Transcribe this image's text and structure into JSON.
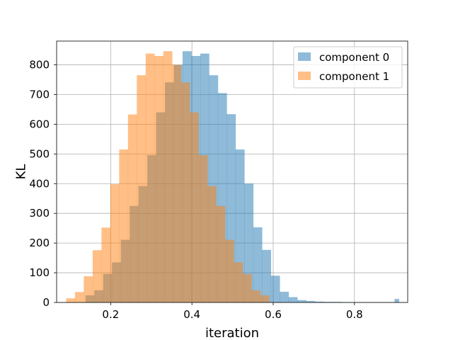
{
  "chart_data": {
    "type": "histogram",
    "xlabel": "iteration",
    "ylabel": "KL",
    "xlim": [
      0.067,
      0.931
    ],
    "ylim": [
      0,
      880
    ],
    "xticks": [
      0.2,
      0.4,
      0.6,
      0.8
    ],
    "xtick_labels": [
      "0.2",
      "0.4",
      "0.6",
      "0.8"
    ],
    "yticks": [
      0,
      100,
      200,
      300,
      400,
      500,
      600,
      700,
      800
    ],
    "ytick_labels": [
      "0",
      "100",
      "200",
      "300",
      "400",
      "500",
      "600",
      "700",
      "800"
    ],
    "grid": true,
    "legend_position": "top-right",
    "series": [
      {
        "name": "component 0",
        "color": "#1f77b4",
        "opacity": 0.5,
        "bin_edges": [
          0.138,
          0.1597,
          0.1815,
          0.2032,
          0.2249,
          0.2467,
          0.2684,
          0.2901,
          0.3118,
          0.3336,
          0.3553,
          0.377,
          0.3988,
          0.4205,
          0.4422,
          0.464,
          0.4857,
          0.5074,
          0.5292,
          0.5509,
          0.5726,
          0.5943,
          0.6161,
          0.6378,
          0.6595,
          0.6813,
          0.703,
          0.7247,
          0.7465,
          0.7682,
          0.7899,
          0.8117,
          0.8334,
          0.8551,
          0.8769,
          0.8986,
          0.9095
        ],
        "counts": [
          24,
          41,
          96,
          135,
          211,
          325,
          392,
          496,
          640,
          741,
          800,
          846,
          830,
          838,
          765,
          705,
          634,
          515,
          400,
          253,
          177,
          90,
          36,
          18,
          8,
          5,
          3,
          2,
          2,
          1,
          1,
          1,
          1,
          1,
          1,
          12
        ]
      },
      {
        "name": "component 1",
        "color": "#ff7f0e",
        "opacity": 0.5,
        "bin_edges": [
          0.0905,
          0.1122,
          0.1339,
          0.1557,
          0.1774,
          0.1991,
          0.2209,
          0.2426,
          0.2643,
          0.2861,
          0.3078,
          0.3295,
          0.3512,
          0.373,
          0.3947,
          0.4164,
          0.4382,
          0.4599,
          0.4816,
          0.5034,
          0.5251,
          0.5468,
          0.5685,
          0.5903,
          0.612,
          0.6337,
          0.6555,
          0.6772,
          0.6989,
          0.7207,
          0.7424,
          0.7641,
          0.7858,
          0.8076,
          0.8293,
          0.851,
          0.862
        ],
        "counts": [
          14,
          35,
          88,
          176,
          252,
          398,
          515,
          633,
          765,
          838,
          830,
          846,
          800,
          741,
          640,
          496,
          392,
          325,
          211,
          135,
          96,
          41,
          24,
          0,
          0,
          0,
          0,
          0,
          0,
          0,
          0,
          0,
          0,
          0,
          0,
          0
        ]
      }
    ]
  }
}
